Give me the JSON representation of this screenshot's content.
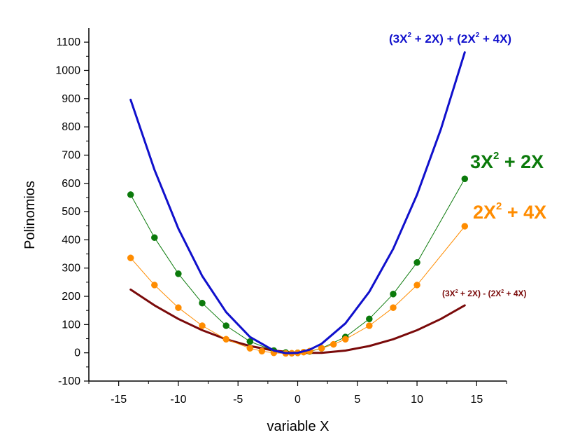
{
  "chart_data": {
    "type": "line",
    "xlabel": "variable X",
    "ylabel": "Polinomios",
    "xlim": [
      -17.5,
      17.5
    ],
    "ylim": [
      -100,
      1150
    ],
    "x_ticks": [
      -15,
      -10,
      -5,
      0,
      5,
      10,
      15
    ],
    "y_ticks": [
      -100,
      0,
      100,
      200,
      300,
      400,
      500,
      600,
      700,
      800,
      900,
      1000,
      1100
    ],
    "grid": false,
    "colors": {
      "sum": "#1010cc",
      "p1": "#0b7a0b",
      "p2": "#ff8c00",
      "diff": "#7a0a0a"
    },
    "series": [
      {
        "key": "sum",
        "style": "line",
        "x": [
          -14,
          -12,
          -10,
          -8,
          -6,
          -4,
          -2,
          -1,
          0,
          1,
          2,
          4,
          6,
          8,
          10,
          12,
          14
        ],
        "y": [
          896,
          648,
          440,
          272,
          144,
          56,
          8,
          -1,
          0,
          11,
          32,
          104,
          216,
          368,
          560,
          792,
          1064
        ]
      },
      {
        "key": "p1",
        "style": "line-markers",
        "x": [
          -14,
          -12,
          -10,
          -8,
          -6,
          -4,
          -2,
          -1,
          0,
          1,
          2,
          4,
          6,
          8,
          10,
          14
        ],
        "y": [
          560,
          408,
          280,
          176,
          96,
          40,
          8,
          1,
          0,
          5,
          16,
          56,
          120,
          208,
          320,
          616
        ]
      },
      {
        "key": "p2",
        "style": "line-markers",
        "x": [
          -14,
          -12,
          -10,
          -8,
          -6,
          -4,
          -3,
          -2,
          -1,
          -0.5,
          0,
          0.5,
          1,
          2,
          3,
          4,
          6,
          8,
          10,
          14
        ],
        "y": [
          336,
          240,
          160,
          96,
          48,
          16,
          6,
          0,
          -2,
          -1.5,
          0,
          2.5,
          6,
          16,
          30,
          48,
          96,
          160,
          240,
          448
        ]
      },
      {
        "key": "diff",
        "style": "line",
        "x": [
          -14,
          -12,
          -10,
          -8,
          -6,
          -4,
          -2,
          0,
          2,
          4,
          6,
          8,
          10,
          12,
          14
        ],
        "y": [
          224,
          168,
          120,
          80,
          48,
          24,
          8,
          0,
          0,
          8,
          24,
          48,
          80,
          120,
          168
        ]
      }
    ],
    "annotations": {
      "sum": {
        "a": "(3X",
        "b": "2",
        "c": " + 2X) + (2X",
        "d": "2",
        "e": " + 4X)"
      },
      "p1": {
        "a": "3X",
        "b": "2",
        "c": " + 2X"
      },
      "p2": {
        "a": "2X",
        "b": "2",
        "c": " + 4X"
      },
      "diff": {
        "a": "(3X",
        "b": "2",
        "c": " + 2X) - (2X",
        "d": "2",
        "e": " + 4X)"
      }
    }
  }
}
